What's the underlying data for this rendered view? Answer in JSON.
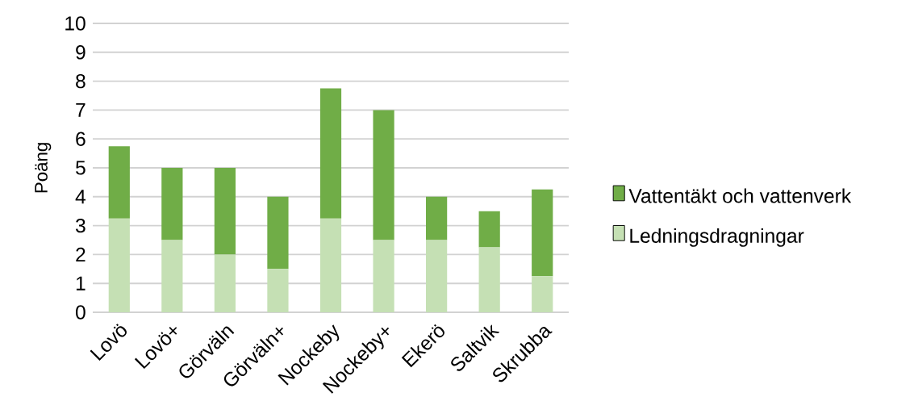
{
  "chart_data": {
    "type": "bar",
    "stacked": true,
    "ylabel": "Poäng",
    "categories": [
      "Lovö",
      "Lovö+",
      "Görväln",
      "Görväln+",
      "Nockeby",
      "Nockeby+",
      "Ekerö",
      "Saltvik",
      "Skrubba"
    ],
    "series": [
      {
        "name": "Ledningsdragningar",
        "color": "#c5e0b4",
        "values": [
          3.25,
          2.5,
          2,
          1.5,
          3.25,
          2.5,
          2.5,
          2.25,
          1.25
        ]
      },
      {
        "name": "Vattentäkt och vattenverk",
        "color": "#70ad47",
        "values": [
          2.5,
          2.5,
          3,
          2.5,
          4.5,
          4.5,
          1.5,
          1.25,
          3
        ]
      }
    ],
    "ylim": [
      0,
      10
    ],
    "yticks": [
      0,
      1,
      2,
      3,
      4,
      5,
      6,
      7,
      8,
      9,
      10
    ],
    "grid": "y",
    "legend": "right"
  }
}
